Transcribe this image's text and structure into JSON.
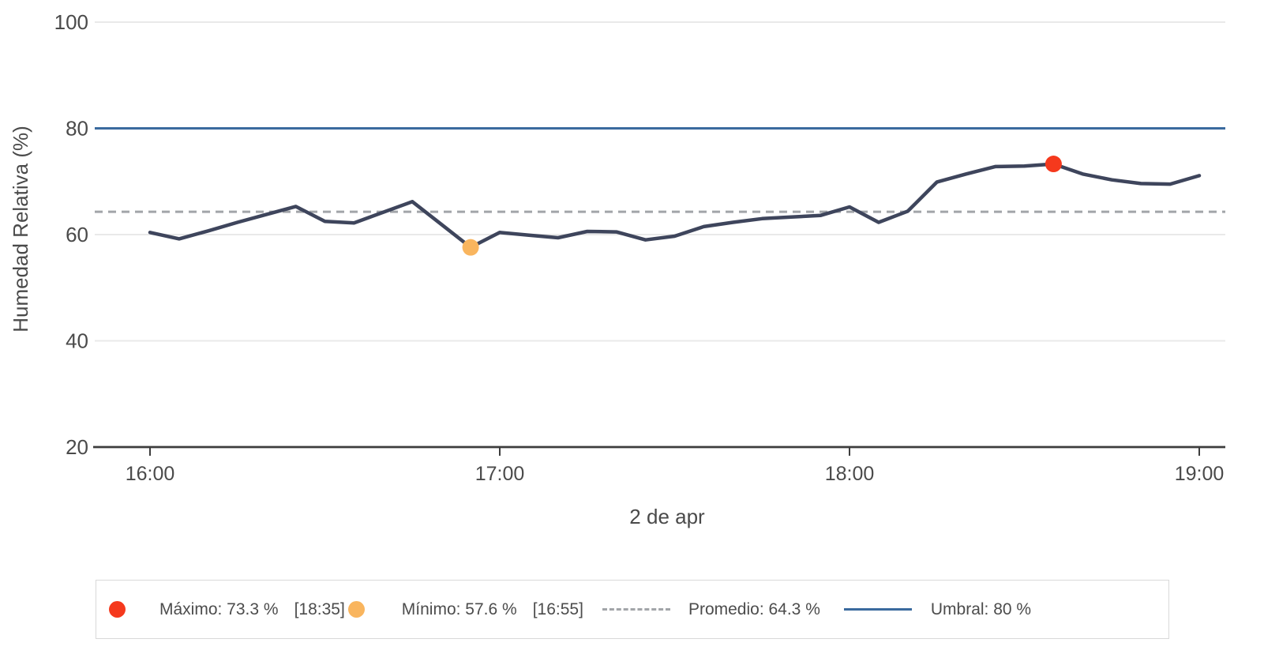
{
  "chart_data": {
    "type": "line",
    "title": "",
    "xlabel": "2 de apr",
    "ylabel": "Humedad Relativa (%)",
    "ylim": [
      20,
      100
    ],
    "yticks": [
      20,
      40,
      60,
      80,
      100
    ],
    "xticks": [
      "16:00",
      "17:00",
      "18:00",
      "19:00"
    ],
    "grid": true,
    "legend_position": "bottom",
    "series": [
      {
        "name": "Humedad Relativa",
        "color": "#3e455c",
        "x": [
          "16:00",
          "16:05",
          "16:10",
          "16:15",
          "16:20",
          "16:25",
          "16:30",
          "16:35",
          "16:40",
          "16:45",
          "16:50",
          "16:55",
          "17:00",
          "17:05",
          "17:10",
          "17:15",
          "17:20",
          "17:25",
          "17:30",
          "17:35",
          "17:40",
          "17:45",
          "17:50",
          "17:55",
          "18:00",
          "18:05",
          "18:10",
          "18:15",
          "18:20",
          "18:25",
          "18:30",
          "18:35",
          "18:40",
          "18:45",
          "18:50",
          "18:55",
          "19:00"
        ],
        "y": [
          60.4,
          59.2,
          60.7,
          62.3,
          63.8,
          65.3,
          62.5,
          62.2,
          64.2,
          66.2,
          61.9,
          57.6,
          60.4,
          59.9,
          59.4,
          60.6,
          60.5,
          59.0,
          59.7,
          61.5,
          62.3,
          63.0,
          63.3,
          63.6,
          65.2,
          62.3,
          64.4,
          69.9,
          71.4,
          72.8,
          72.9,
          73.3,
          71.4,
          70.3,
          69.6,
          69.5,
          71.1
        ]
      }
    ],
    "reference_lines": [
      {
        "name": "Umbral",
        "value": 80,
        "style": "solid",
        "color": "#3a6a9e"
      },
      {
        "name": "Promedio",
        "value": 64.3,
        "style": "dashed",
        "color": "#a2a5a9"
      }
    ],
    "markers": [
      {
        "name": "Máximo",
        "time": "18:35",
        "value": 73.3,
        "color": "#f5391d"
      },
      {
        "name": "Mínimo",
        "time": "16:55",
        "value": 57.6,
        "color": "#f9b55e"
      }
    ]
  },
  "legend": {
    "items": [
      {
        "label": "Máximo: 73.3 %",
        "time": "[18:35]",
        "swatch": "dot",
        "color": "#f5391d"
      },
      {
        "label": "Mínimo: 57.6 %",
        "time": "[16:55]",
        "swatch": "dot",
        "color": "#f9b55e"
      },
      {
        "label": "Promedio: 64.3 %",
        "swatch": "dashed-line",
        "color": "#a2a5a9"
      },
      {
        "label": "Umbral: 80 %",
        "swatch": "solid-line",
        "color": "#3a6a9e"
      }
    ]
  },
  "colors": {
    "series_line": "#3e455c",
    "threshold_line": "#3a6a9e",
    "average_line": "#a2a5a9",
    "max_marker": "#f5391d",
    "min_marker": "#f9b55e",
    "gridline": "#e9e9e9",
    "axis_line": "#3d3d3d",
    "text": "#4a4a4a"
  }
}
